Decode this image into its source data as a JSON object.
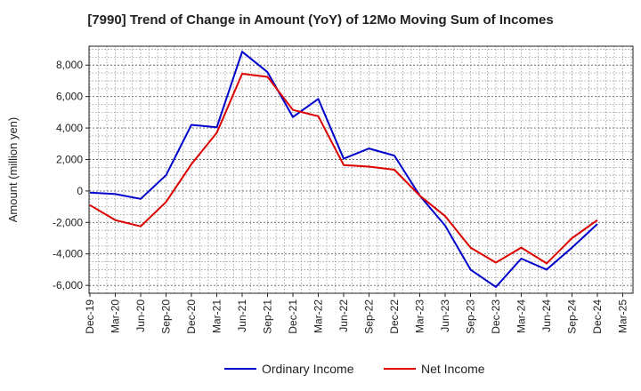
{
  "chart_data": {
    "type": "line",
    "title": "[7990]  Trend of Change in Amount (YoY) of 12Mo Moving Sum of Incomes",
    "xlabel": "",
    "ylabel": "Amount (million yen)",
    "categories": [
      "Dec-19",
      "Mar-20",
      "Jun-20",
      "Sep-20",
      "Dec-20",
      "Mar-21",
      "Jun-21",
      "Sep-21",
      "Dec-21",
      "Mar-22",
      "Jun-22",
      "Sep-22",
      "Dec-22",
      "Mar-23",
      "Jun-23",
      "Sep-23",
      "Dec-23",
      "Mar-24",
      "Jun-24",
      "Sep-24",
      "Dec-24",
      "Mar-25"
    ],
    "ylim": [
      -6500,
      9200
    ],
    "yticks": [
      -6000,
      -4000,
      -2000,
      0,
      2000,
      4000,
      6000,
      8000
    ],
    "ytick_labels": [
      "-6,000",
      "-4,000",
      "-2,000",
      "0",
      "2,000",
      "4,000",
      "6,000",
      "8,000"
    ],
    "grid": true,
    "legend_position": "bottom-center",
    "series": [
      {
        "name": "Ordinary Income",
        "color": "#0000cc",
        "values": [
          -100,
          -200,
          -500,
          1000,
          4200,
          4050,
          8850,
          7550,
          4700,
          5850,
          2050,
          2700,
          2250,
          -300,
          -2200,
          -5000,
          -6100,
          -4300,
          -5000,
          -3600,
          -2100,
          null
        ]
      },
      {
        "name": "Net Income",
        "color": "#dd0000",
        "values": [
          -900,
          -1850,
          -2250,
          -700,
          1700,
          3700,
          7450,
          7250,
          5150,
          4750,
          1650,
          1550,
          1350,
          -300,
          -1600,
          -3600,
          -4550,
          -3600,
          -4600,
          -3000,
          -1850,
          null
        ]
      }
    ]
  }
}
